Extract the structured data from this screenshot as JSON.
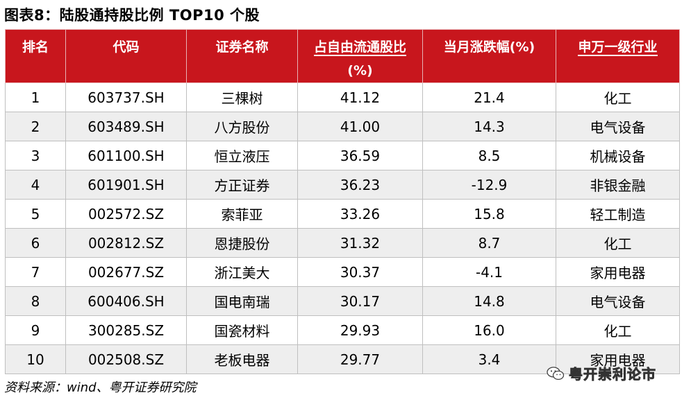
{
  "title": "图表8：陆股通持股比例 TOP10 个股",
  "table": {
    "headers": [
      "排名",
      "代码",
      "证券名称",
      "占自由流通股比(%)",
      "当月涨跌幅(%)",
      "申万一级行业"
    ],
    "header_line1": {
      "rank": "排名",
      "code": "代码",
      "name": "证券名称",
      "ratio": "占自由流通股比",
      "change": "当月涨跌幅(%)",
      "industry": "申万一级行业"
    },
    "header_line2": {
      "ratio": "(%)"
    },
    "rows": [
      {
        "rank": "1",
        "code": "603737.SH",
        "name": "三棵树",
        "ratio": "41.12",
        "change": "21.4",
        "industry": "化工"
      },
      {
        "rank": "2",
        "code": "603489.SH",
        "name": "八方股份",
        "ratio": "41.00",
        "change": "14.3",
        "industry": "电气设备"
      },
      {
        "rank": "3",
        "code": "601100.SH",
        "name": "恒立液压",
        "ratio": "36.59",
        "change": "8.5",
        "industry": "机械设备"
      },
      {
        "rank": "4",
        "code": "601901.SH",
        "name": "方正证券",
        "ratio": "36.23",
        "change": "-12.9",
        "industry": "非银金融"
      },
      {
        "rank": "5",
        "code": "002572.SZ",
        "name": "索菲亚",
        "ratio": "33.26",
        "change": "15.8",
        "industry": "轻工制造"
      },
      {
        "rank": "6",
        "code": "002812.SZ",
        "name": "恩捷股份",
        "ratio": "31.32",
        "change": "8.7",
        "industry": "化工"
      },
      {
        "rank": "7",
        "code": "002677.SZ",
        "name": "浙江美大",
        "ratio": "30.37",
        "change": "-4.1",
        "industry": "家用电器"
      },
      {
        "rank": "8",
        "code": "600406.SH",
        "name": "国电南瑞",
        "ratio": "30.17",
        "change": "14.8",
        "industry": "电气设备"
      },
      {
        "rank": "9",
        "code": "300285.SZ",
        "name": "国瓷材料",
        "ratio": "29.93",
        "change": "16.0",
        "industry": "化工"
      },
      {
        "rank": "10",
        "code": "002508.SZ",
        "name": "老板电器",
        "ratio": "29.77",
        "change": "3.4",
        "industry": "家用电器"
      }
    ]
  },
  "source": "资料来源：wind、粤开证券研究院",
  "watermark": {
    "text": "粤开崇利论市",
    "icon": "wechat-icon"
  },
  "colors": {
    "header_bg": "#c8161d",
    "header_text": "#ffffff",
    "stripe": "#eeeeee",
    "border": "#bfbfbf"
  }
}
